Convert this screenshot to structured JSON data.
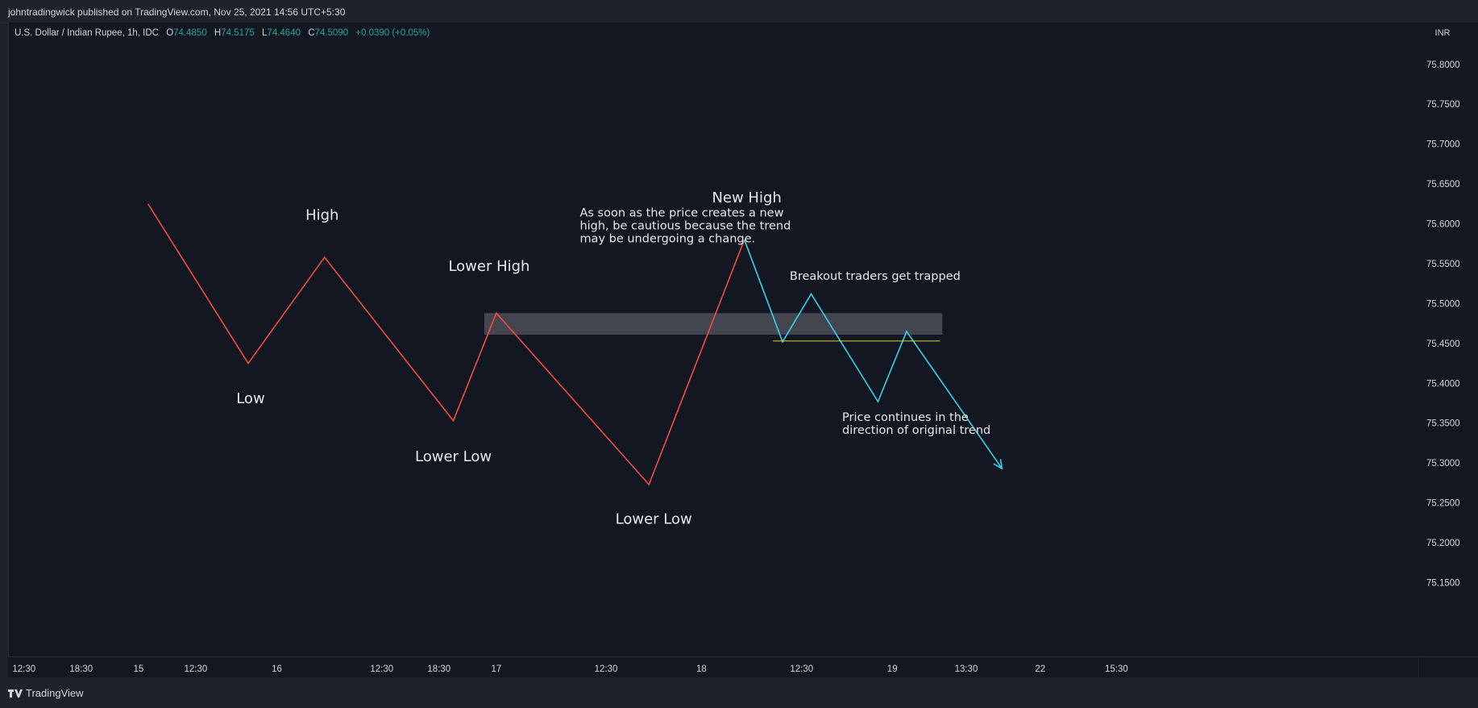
{
  "header": {
    "published": "johntradingwick published on TradingView.com, Nov 25, 2021 14:56 UTC+5:30"
  },
  "legend": {
    "symbol": "U.S. Dollar / Indian Rupee, 1h, IDC",
    "open_label": "O",
    "open": "74.4850",
    "high_label": "H",
    "high": "74.5175",
    "low_label": "L",
    "low": "74.4640",
    "close_label": "C",
    "close": "74.5090",
    "change": "+0.0390 (+0.05%)"
  },
  "footer": {
    "brand": "TradingView"
  },
  "colors": {
    "background": "#131722",
    "frame": "#1e222d",
    "downtrend": "#f24c3d",
    "new_trend": "#35d4e6",
    "zone": "#4c4f57",
    "breakout_line": "#d9d443",
    "change_text": "#26a69a"
  },
  "chart_data": {
    "type": "line",
    "currency": "INR",
    "price_axis": {
      "ticks": [
        "75.8000",
        "75.7500",
        "75.7000",
        "75.6500",
        "75.6000",
        "75.5500",
        "75.5000",
        "75.4500",
        "75.4000",
        "75.3500",
        "75.3000",
        "75.2500",
        "75.2000",
        "75.1500"
      ],
      "ylim": [
        75.105,
        75.82
      ]
    },
    "time_axis": {
      "ticks": [
        "12:30",
        "18:30",
        "15",
        "12:30",
        "16",
        "12:30",
        "18:30",
        "17",
        "12:30",
        "18",
        "12:30",
        "19",
        "13:30",
        "22",
        "15:30"
      ],
      "tick_slots": [
        0.3,
        1.5,
        2.7,
        3.9,
        5.6,
        7.8,
        9.0,
        10.2,
        12.5,
        14.5,
        16.6,
        18.5,
        20.05,
        21.6,
        23.2
      ]
    },
    "series": [
      {
        "name": "",
        "x": [
          2.9,
          5.0,
          6.6,
          9.3,
          10.2,
          13.4,
          15.4
        ],
        "y": [
          75.625,
          75.425,
          75.558,
          75.353,
          75.488,
          75.273,
          75.58
        ]
      },
      {
        "name": "",
        "x": [
          15.4,
          16.2,
          16.8,
          18.2,
          18.8,
          20.8
        ],
        "y": [
          75.58,
          75.452,
          75.512,
          75.377,
          75.465,
          75.293
        ]
      }
    ],
    "zone": {
      "x0": 9.95,
      "x1": 19.55,
      "y_low": 75.461,
      "y_high": 75.488
    },
    "breakout_level": {
      "x0": 16.0,
      "x1": 19.5,
      "y": 75.453
    },
    "annotations": [
      {
        "text": "High",
        "x": 6.55,
        "y": 75.605,
        "size": "large"
      },
      {
        "text": "Low",
        "x": 5.05,
        "y": 75.375,
        "size": "large"
      },
      {
        "text": "Lower Low",
        "x": 9.3,
        "y": 75.302,
        "size": "large"
      },
      {
        "text": "Lower High",
        "x": 10.05,
        "y": 75.541,
        "size": "large"
      },
      {
        "text": "Lower Low",
        "x": 13.5,
        "y": 75.224,
        "size": "large"
      },
      {
        "text": "New High",
        "x": 15.45,
        "y": 75.627,
        "size": "large"
      },
      {
        "text": "Breakout traders get trapped",
        "x": 16.35,
        "y": 75.53,
        "size": "small",
        "anchor": "start"
      }
    ],
    "notes": [
      {
        "lines": [
          "As soon as the price creates a new",
          "high, be cautious because the trend",
          "may be undergoing a change."
        ],
        "x": 11.95,
        "y": 75.609
      },
      {
        "lines": [
          "Price continues in the",
          "direction of original trend"
        ],
        "x": 17.45,
        "y": 75.353
      }
    ]
  }
}
